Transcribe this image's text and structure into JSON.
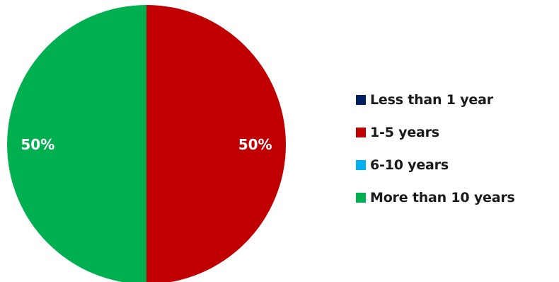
{
  "chart_data": {
    "type": "pie",
    "title": "",
    "categories": [
      "Less than 1 year",
      "1-5 years",
      "6-10 years",
      "More than 10 years"
    ],
    "values": [
      0,
      50,
      0,
      50
    ],
    "value_labels": [
      "",
      "50%",
      "",
      "50%"
    ],
    "colors": [
      "#002060",
      "#C00000",
      "#00B0F0",
      "#00B050"
    ],
    "legend_position": "right",
    "start_angle": "12 o'clock, clockwise"
  }
}
